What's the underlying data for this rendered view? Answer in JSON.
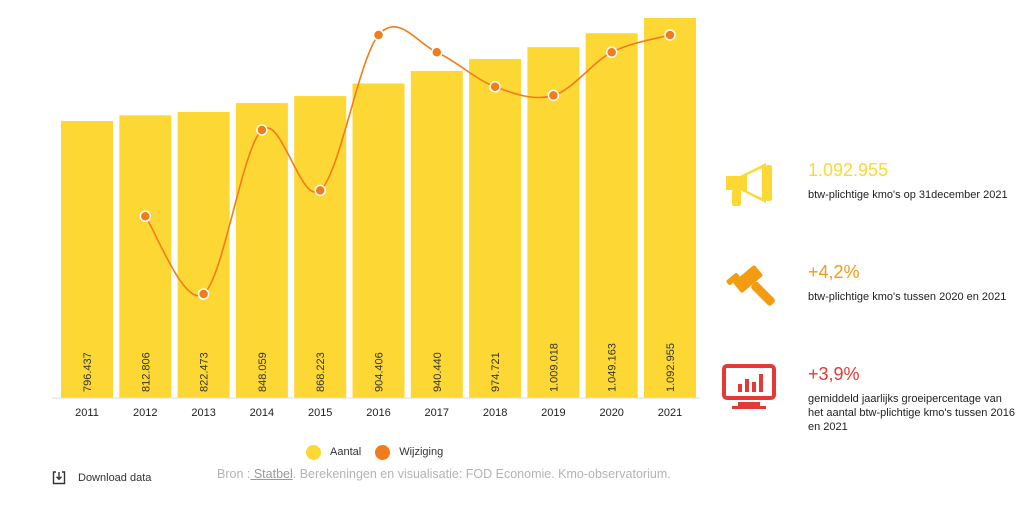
{
  "chart_data": {
    "type": "bar",
    "categories": [
      "2011",
      "2012",
      "2013",
      "2014",
      "2015",
      "2016",
      "2017",
      "2018",
      "2019",
      "2020",
      "2021"
    ],
    "series": [
      {
        "name": "Aantal",
        "type": "bar",
        "color": "#FDD835",
        "values": [
          796437,
          812806,
          822473,
          848059,
          868223,
          904406,
          940440,
          974721,
          1009018,
          1049163,
          1092955
        ],
        "labels": [
          "796.437",
          "812.806",
          "822.473",
          "848.059",
          "868.223",
          "904.406",
          "940.440",
          "974.721",
          "1.009.018",
          "1.049.163",
          "1.092.955"
        ]
      },
      {
        "name": "Wijziging",
        "type": "line",
        "color": "#F07C1B",
        "values": [
          null,
          2.1,
          1.2,
          3.1,
          2.4,
          4.2,
          4.0,
          3.6,
          3.5,
          4.0,
          4.2
        ]
      }
    ],
    "legend": "bottom-center",
    "grid": false
  },
  "legend": {
    "aantal": "Aantal",
    "wijziging": "Wijziging"
  },
  "source": {
    "prefix": "Bron :",
    "link": " Statbel",
    "suffix": ". Berekeningen en visualisatie: FOD Economie. Kmo-observatorium."
  },
  "download": {
    "label": "Download data"
  },
  "stats": [
    {
      "value": "1.092.955",
      "desc": "btw-plichtige kmo's op 31december 2021",
      "color": "#FDD835",
      "icon": "megaphone-icon"
    },
    {
      "value": "+4,2%",
      "desc": "btw-plichtige kmo's tussen 2020 en 2021",
      "color": "#F39C12",
      "icon": "gavel-icon"
    },
    {
      "value": "+3,9%",
      "desc": "gemiddeld jaarlijks groeipercentage van het aantal btw-plichtige kmo's tussen 2016 en 2021",
      "color": "#E53935",
      "icon": "monitor-chart-icon"
    }
  ]
}
